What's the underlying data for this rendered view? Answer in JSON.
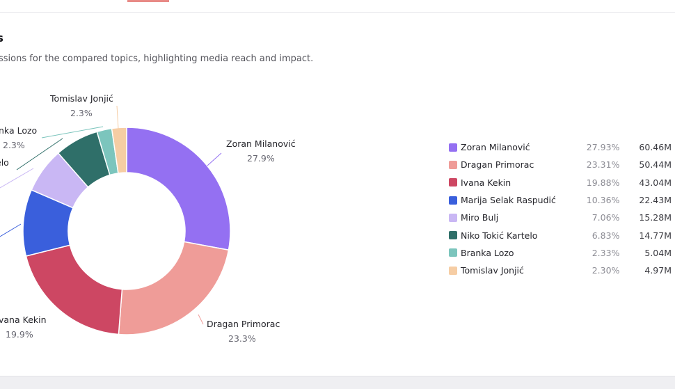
{
  "header": {
    "title": "ns",
    "subtitle": "ssions for the compared topics, highlighting media reach and impact."
  },
  "chart_data": {
    "type": "pie",
    "variant": "donut",
    "series": [
      {
        "name": "Zoran Milanović",
        "percent": 27.93,
        "value_label": "60.46M",
        "chart_label": "Zoran Milanović",
        "chart_pct": "27.9%",
        "color": "#9470f2"
      },
      {
        "name": "Dragan Primorac",
        "percent": 23.31,
        "value_label": "50.44M",
        "chart_label": "Dragan Primorac",
        "chart_pct": "23.3%",
        "color": "#ef9c98"
      },
      {
        "name": "Ivana Kekin",
        "percent": 19.88,
        "value_label": "43.04M",
        "chart_label": "vana Kekin",
        "chart_pct": "19.9%",
        "color": "#cd4763"
      },
      {
        "name": "Marija Selak Raspudić",
        "percent": 10.36,
        "value_label": "22.43M",
        "chart_label": "",
        "chart_pct": "",
        "color": "#3a5fdc"
      },
      {
        "name": "Miro Bulj",
        "percent": 7.06,
        "value_label": "15.28M",
        "chart_label": "i",
        "chart_pct": "",
        "color": "#c9b7f4"
      },
      {
        "name": "Niko Tokić Kartelo",
        "percent": 6.83,
        "value_label": "14.77M",
        "chart_label": "elo",
        "chart_pct": "",
        "color": "#2f6f69"
      },
      {
        "name": "Branka Lozo",
        "percent": 2.33,
        "value_label": "5.04M",
        "chart_label": "nka Lozo",
        "chart_pct": "2.3%",
        "color": "#7cc5bd"
      },
      {
        "name": "Tomislav Jonjić",
        "percent": 2.3,
        "value_label": "4.97M",
        "chart_label": "Tomislav Jonjić",
        "chart_pct": "2.3%",
        "color": "#f6cda4"
      }
    ],
    "legend": "right"
  }
}
